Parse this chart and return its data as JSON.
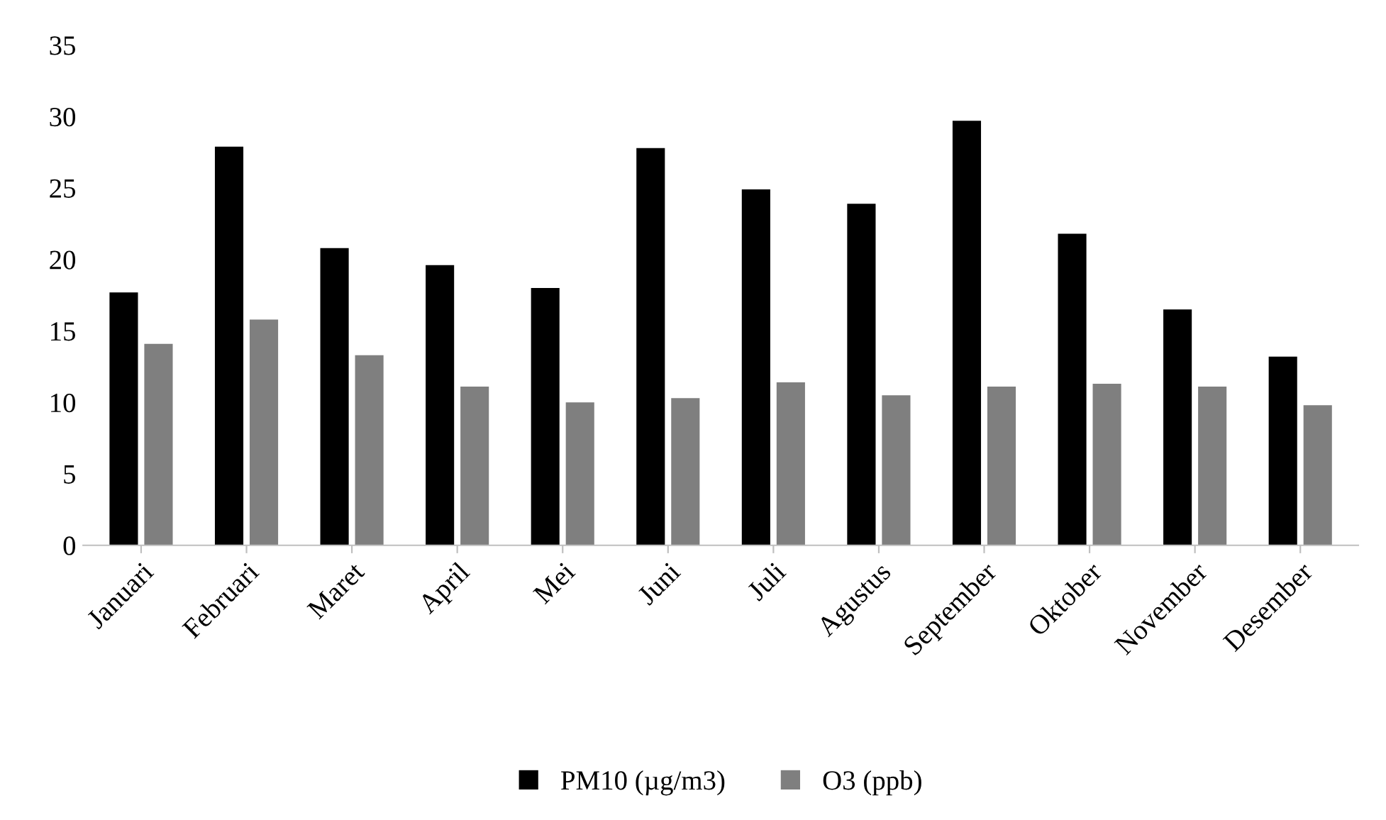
{
  "chart_data": {
    "type": "bar",
    "categories": [
      "Januari",
      "Februari",
      "Maret",
      "April",
      "Mei",
      "Juni",
      "Juli",
      "Agustus",
      "September",
      "Oktober",
      "November",
      "Desember"
    ],
    "series": [
      {
        "name": "PM10 (µg/m3)",
        "color": "#000000",
        "values": [
          17.7,
          27.9,
          20.8,
          19.6,
          18.0,
          27.8,
          24.9,
          23.9,
          29.7,
          21.8,
          16.5,
          13.2
        ]
      },
      {
        "name": "O3 (ppb)",
        "color": "#7f7f7f",
        "values": [
          14.1,
          15.8,
          13.3,
          11.1,
          10.0,
          10.3,
          11.4,
          10.5,
          11.1,
          11.3,
          11.1,
          9.8
        ]
      }
    ],
    "ylim": [
      0,
      35
    ],
    "yticks": [
      0,
      5,
      10,
      15,
      20,
      25,
      30,
      35
    ],
    "grid": false,
    "legend": "bottom"
  }
}
